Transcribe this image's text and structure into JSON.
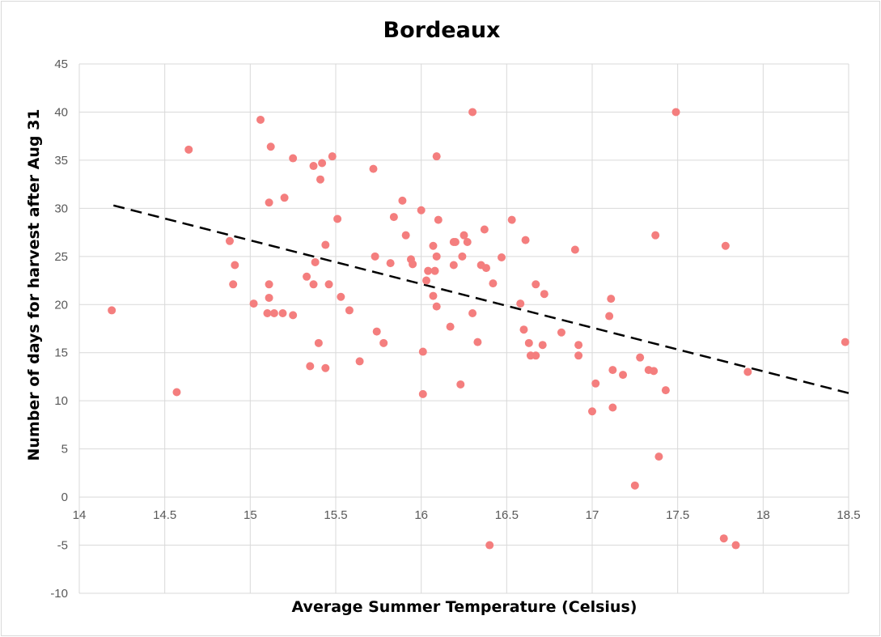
{
  "chart_data": {
    "type": "scatter",
    "title": "Bordeaux",
    "xlabel": "Average Summer Temperature (Celsius)",
    "ylabel": "Number of days for harvest after Aug 31",
    "xlim": [
      14,
      18.5
    ],
    "ylim": [
      -10,
      45
    ],
    "xticks": [
      14,
      14.5,
      15,
      15.5,
      16,
      16.5,
      17,
      17.5,
      18,
      18.5
    ],
    "xtick_labels": [
      "14",
      "14.5",
      "15",
      "15.5",
      "16",
      "16.5",
      "17",
      "17.5",
      "18",
      "18.5"
    ],
    "yticks": [
      -10,
      -5,
      0,
      5,
      10,
      15,
      20,
      25,
      30,
      35,
      40,
      45
    ],
    "ytick_labels": [
      "-10",
      "-5",
      "0",
      "5",
      "10",
      "15",
      "20",
      "25",
      "30",
      "35",
      "40",
      "45"
    ],
    "grid": true,
    "point_color": "#f47e7e",
    "trendline": {
      "style": "dashed",
      "color": "#000000",
      "from": [
        14.2,
        30.3
      ],
      "to": [
        18.5,
        10.8
      ]
    },
    "points": [
      [
        14.19,
        19.4
      ],
      [
        14.57,
        10.9
      ],
      [
        14.64,
        36.1
      ],
      [
        14.88,
        26.6
      ],
      [
        14.9,
        22.1
      ],
      [
        14.91,
        24.1
      ],
      [
        15.02,
        20.1
      ],
      [
        15.06,
        39.2
      ],
      [
        15.1,
        19.1
      ],
      [
        15.11,
        20.7
      ],
      [
        15.11,
        22.1
      ],
      [
        15.11,
        30.6
      ],
      [
        15.12,
        36.4
      ],
      [
        15.14,
        19.1
      ],
      [
        15.19,
        19.1
      ],
      [
        15.2,
        31.1
      ],
      [
        15.25,
        18.9
      ],
      [
        15.25,
        35.2
      ],
      [
        15.33,
        22.9
      ],
      [
        15.35,
        13.6
      ],
      [
        15.37,
        22.1
      ],
      [
        15.37,
        34.4
      ],
      [
        15.38,
        24.4
      ],
      [
        15.4,
        16.0
      ],
      [
        15.41,
        33.0
      ],
      [
        15.42,
        34.7
      ],
      [
        15.44,
        13.4
      ],
      [
        15.44,
        26.2
      ],
      [
        15.46,
        22.1
      ],
      [
        15.48,
        35.4
      ],
      [
        15.51,
        28.9
      ],
      [
        15.53,
        20.8
      ],
      [
        15.58,
        19.4
      ],
      [
        15.64,
        14.1
      ],
      [
        15.72,
        34.1
      ],
      [
        15.73,
        25.0
      ],
      [
        15.74,
        17.2
      ],
      [
        15.78,
        16.0
      ],
      [
        15.82,
        24.3
      ],
      [
        15.84,
        29.1
      ],
      [
        15.89,
        30.8
      ],
      [
        15.91,
        27.2
      ],
      [
        15.94,
        24.7
      ],
      [
        15.95,
        24.2
      ],
      [
        16.0,
        29.8
      ],
      [
        16.01,
        10.7
      ],
      [
        16.01,
        15.1
      ],
      [
        16.03,
        22.5
      ],
      [
        16.04,
        23.5
      ],
      [
        16.07,
        26.1
      ],
      [
        16.07,
        20.9
      ],
      [
        16.08,
        23.5
      ],
      [
        16.09,
        19.8
      ],
      [
        16.09,
        25.0
      ],
      [
        16.09,
        35.4
      ],
      [
        16.1,
        28.8
      ],
      [
        16.17,
        17.7
      ],
      [
        16.19,
        24.1
      ],
      [
        16.19,
        26.5
      ],
      [
        16.2,
        26.5
      ],
      [
        16.23,
        11.7
      ],
      [
        16.24,
        25.0
      ],
      [
        16.25,
        27.2
      ],
      [
        16.27,
        26.5
      ],
      [
        16.3,
        19.1
      ],
      [
        16.3,
        40.0
      ],
      [
        16.33,
        16.1
      ],
      [
        16.35,
        24.1
      ],
      [
        16.37,
        27.8
      ],
      [
        16.38,
        23.8
      ],
      [
        16.4,
        -5.0
      ],
      [
        16.42,
        22.2
      ],
      [
        16.47,
        24.9
      ],
      [
        16.53,
        28.8
      ],
      [
        16.58,
        20.1
      ],
      [
        16.6,
        17.4
      ],
      [
        16.61,
        26.7
      ],
      [
        16.63,
        16.0
      ],
      [
        16.64,
        14.7
      ],
      [
        16.67,
        14.7
      ],
      [
        16.67,
        22.1
      ],
      [
        16.71,
        15.8
      ],
      [
        16.72,
        21.1
      ],
      [
        16.82,
        17.1
      ],
      [
        16.9,
        25.7
      ],
      [
        16.92,
        14.7
      ],
      [
        16.92,
        15.8
      ],
      [
        17.0,
        8.9
      ],
      [
        17.02,
        11.8
      ],
      [
        17.1,
        18.8
      ],
      [
        17.11,
        20.6
      ],
      [
        17.12,
        13.2
      ],
      [
        17.12,
        9.3
      ],
      [
        17.18,
        12.7
      ],
      [
        17.25,
        1.2
      ],
      [
        17.28,
        14.5
      ],
      [
        17.33,
        13.2
      ],
      [
        17.36,
        13.1
      ],
      [
        17.37,
        27.2
      ],
      [
        17.39,
        4.2
      ],
      [
        17.43,
        11.1
      ],
      [
        17.49,
        40.0
      ],
      [
        17.77,
        -4.3
      ],
      [
        17.78,
        26.1
      ],
      [
        17.84,
        -5.0
      ],
      [
        17.91,
        13.0
      ],
      [
        18.48,
        16.1
      ]
    ]
  }
}
